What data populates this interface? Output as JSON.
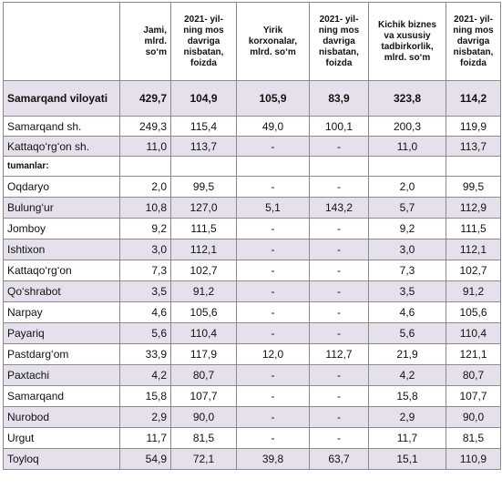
{
  "headers": [
    "",
    "Jami, mlrd. so‘m",
    "2021- yil-ning mos davriga nisbatan, foizda",
    "Yirik korxonalar, mlrd. so‘m",
    "2021- yil-ning mos davriga nisbatan, foizda",
    "Kichik biznes va xususiy tadbirkorlik, mlrd. so‘m",
    "2021- yil-ning mos davriga nisbatan, foizda"
  ],
  "total": {
    "name": "Samarqand viloyati",
    "values": [
      "429,7",
      "104,9",
      "105,9",
      "83,9",
      "323,8",
      "114,2"
    ]
  },
  "cities": [
    {
      "name": "Samarqand sh.",
      "values": [
        "249,3",
        "115,4",
        "49,0",
        "100,1",
        "200,3",
        "119,9"
      ]
    },
    {
      "name": "Kattaqo‘rg‘on sh.",
      "values": [
        "11,0",
        "113,7",
        "-",
        "-",
        "11,0",
        "113,7"
      ]
    }
  ],
  "section_label": "tumanlar:",
  "districts": [
    {
      "name": "Oqdaryo",
      "values": [
        "2,0",
        "99,5",
        "-",
        "-",
        "2,0",
        "99,5"
      ]
    },
    {
      "name": "Bulung‘ur",
      "values": [
        "10,8",
        "127,0",
        "5,1",
        "143,2",
        "5,7",
        "112,9"
      ]
    },
    {
      "name": "Jomboy",
      "values": [
        "9,2",
        "111,5",
        "-",
        "-",
        "9,2",
        "111,5"
      ]
    },
    {
      "name": "Ishtixon",
      "values": [
        "3,0",
        "112,1",
        "-",
        "-",
        "3,0",
        "112,1"
      ]
    },
    {
      "name": "Kattaqo‘rg‘on",
      "values": [
        "7,3",
        "102,7",
        "-",
        "-",
        "7,3",
        "102,7"
      ]
    },
    {
      "name": "Qo‘shrabot",
      "values": [
        "3,5",
        "91,2",
        "-",
        "-",
        "3,5",
        "91,2"
      ]
    },
    {
      "name": "Narpay",
      "values": [
        "4,6",
        "105,6",
        "-",
        "-",
        "4,6",
        "105,6"
      ]
    },
    {
      "name": "Payariq",
      "values": [
        "5,6",
        "110,4",
        "-",
        "-",
        "5,6",
        "110,4"
      ]
    },
    {
      "name": "Pastdarg‘om",
      "values": [
        "33,9",
        "117,9",
        "12,0",
        "112,7",
        "21,9",
        "121,1"
      ]
    },
    {
      "name": "Paxtachi",
      "values": [
        "4,2",
        "80,7",
        "-",
        "-",
        "4,2",
        "80,7"
      ]
    },
    {
      "name": "Samarqand",
      "values": [
        "15,8",
        "107,7",
        "-",
        "-",
        "15,8",
        "107,7"
      ]
    },
    {
      "name": "Nurobod",
      "values": [
        "2,9",
        "90,0",
        "-",
        "-",
        "2,9",
        "90,0"
      ]
    },
    {
      "name": "Urgut",
      "values": [
        "11,7",
        "81,5",
        "-",
        "-",
        "11,7",
        "81,5"
      ]
    },
    {
      "name": "Toyloq",
      "values": [
        "54,9",
        "72,1",
        "39,8",
        "63,7",
        "15,1",
        "110,9"
      ]
    }
  ]
}
